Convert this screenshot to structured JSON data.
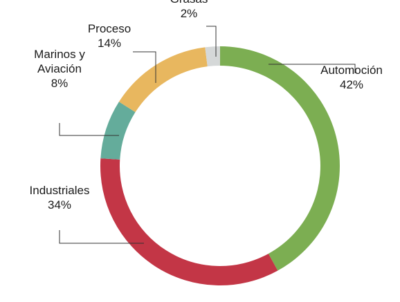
{
  "chart_data": {
    "type": "pie",
    "donut": true,
    "unit": "%",
    "categories": [
      "Automoción",
      "Industriales",
      "Marinos y Aviación",
      "Proceso",
      "Grasas"
    ],
    "values": [
      42,
      34,
      8,
      14,
      2
    ],
    "value_labels": [
      "42%",
      "34%",
      "8%",
      "14%",
      "2%"
    ],
    "colors": [
      "#7cae52",
      "#c33646",
      "#64ac9b",
      "#e8b75f",
      "#d5d8d8"
    ],
    "label_lines": [
      [
        "Automoción"
      ],
      [
        "Industriales"
      ],
      [
        "Marinos y",
        "Aviación"
      ],
      [
        "Proceso"
      ],
      [
        "Grasas"
      ]
    ],
    "legend": "none",
    "title": ""
  }
}
